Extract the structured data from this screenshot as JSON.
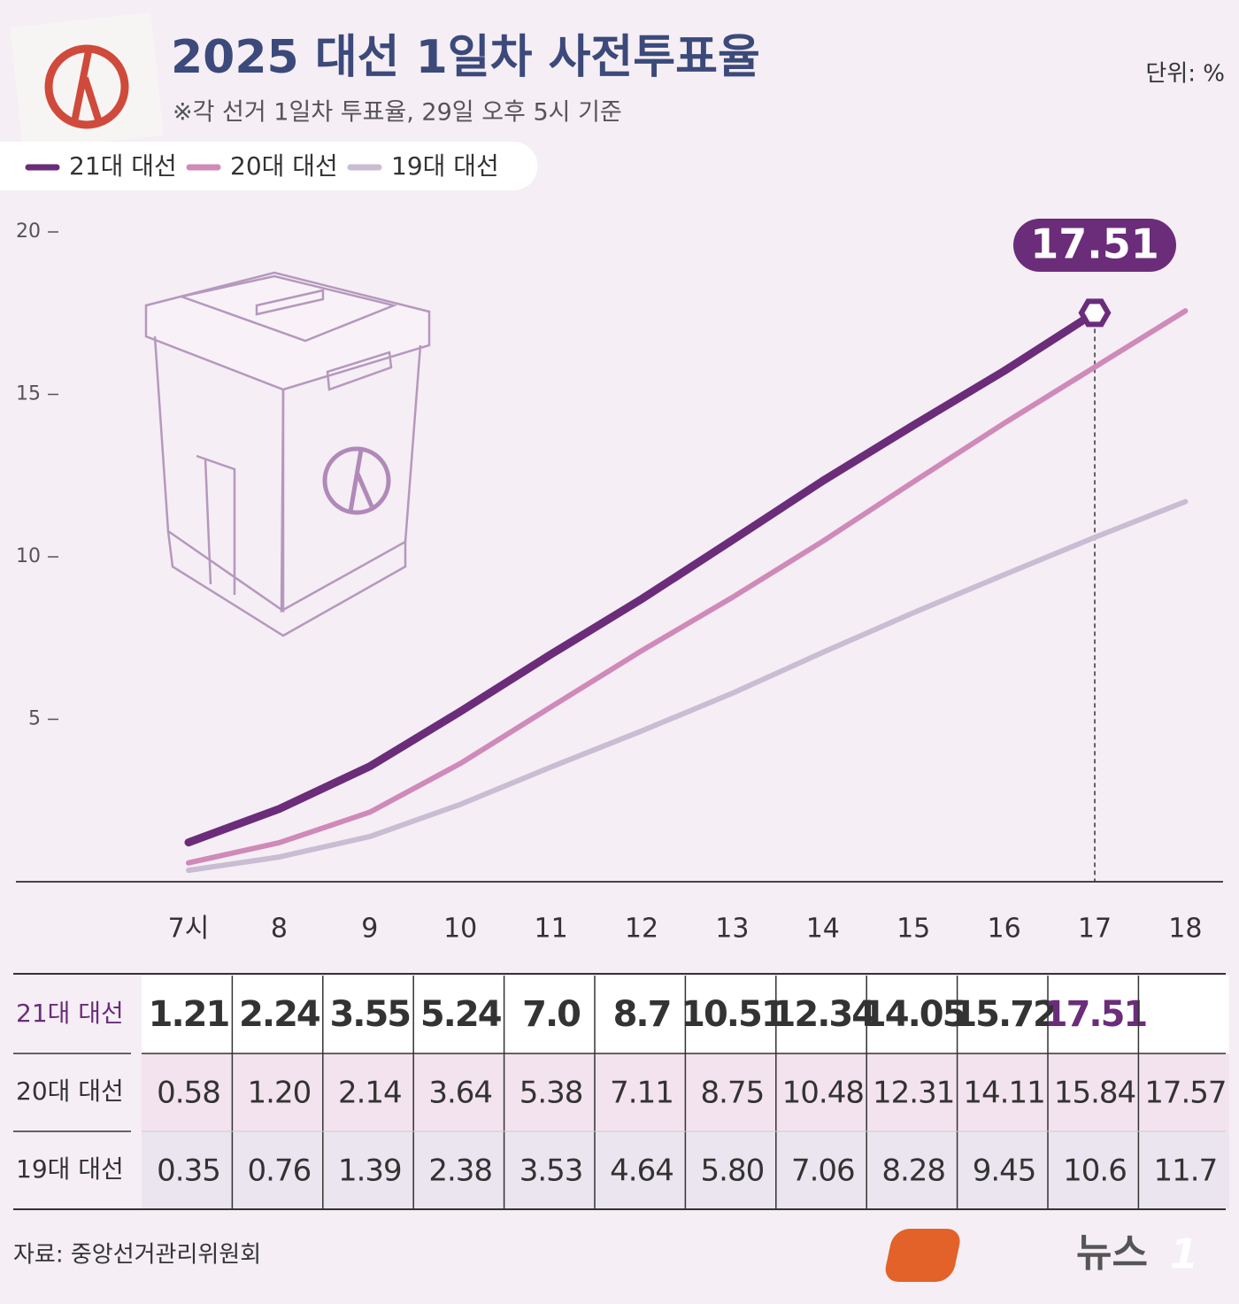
{
  "chart_data": {
    "type": "line",
    "title": "2025 대선 1일차 사전투표율",
    "subtitle": "※각 선거 1일차 투표율, 29일 오후 5시 기준",
    "unit": "단위: %",
    "source": "자료: 중앙선거관리위원회",
    "logo": {
      "text": "뉴스",
      "mark": "1"
    },
    "categories": [
      "7시",
      "8",
      "9",
      "10",
      "11",
      "12",
      "13",
      "14",
      "15",
      "16",
      "17",
      "18"
    ],
    "series": [
      {
        "name": "21대 대선",
        "color": "#6b2c7a",
        "values": [
          1.21,
          2.24,
          3.55,
          5.24,
          7.0,
          8.7,
          10.51,
          12.34,
          14.05,
          15.72,
          17.51,
          null
        ],
        "value_labels": [
          "1.21",
          "2.24",
          "3.55",
          "5.24",
          "7.0",
          "8.7",
          "10.51",
          "12.34",
          "14.05",
          "15.72",
          "17.51",
          null
        ]
      },
      {
        "name": "20대 대선",
        "color": "#cf8ab9",
        "values": [
          0.58,
          1.2,
          2.14,
          3.64,
          5.38,
          7.11,
          8.75,
          10.48,
          12.31,
          14.11,
          15.84,
          17.57
        ],
        "value_labels": [
          "0.58",
          "1.20",
          "2.14",
          "3.64",
          "5.38",
          "7.11",
          "8.75",
          "10.48",
          "12.31",
          "14.11",
          "15.84",
          "17.57"
        ]
      },
      {
        "name": "19대 대선",
        "color": "#c8bdd3",
        "values": [
          0.35,
          0.76,
          1.39,
          2.38,
          3.53,
          4.64,
          5.8,
          7.06,
          8.28,
          9.45,
          10.6,
          11.7
        ],
        "value_labels": [
          "0.35",
          "0.76",
          "1.39",
          "2.38",
          "3.53",
          "4.64",
          "5.80",
          "7.06",
          "8.28",
          "9.45",
          "10.6",
          "11.7"
        ]
      }
    ],
    "highlight": {
      "series": 0,
      "index": 10
    },
    "ylim": [
      0,
      20
    ],
    "yticks": [
      5,
      10,
      15,
      20
    ],
    "grid": false
  }
}
